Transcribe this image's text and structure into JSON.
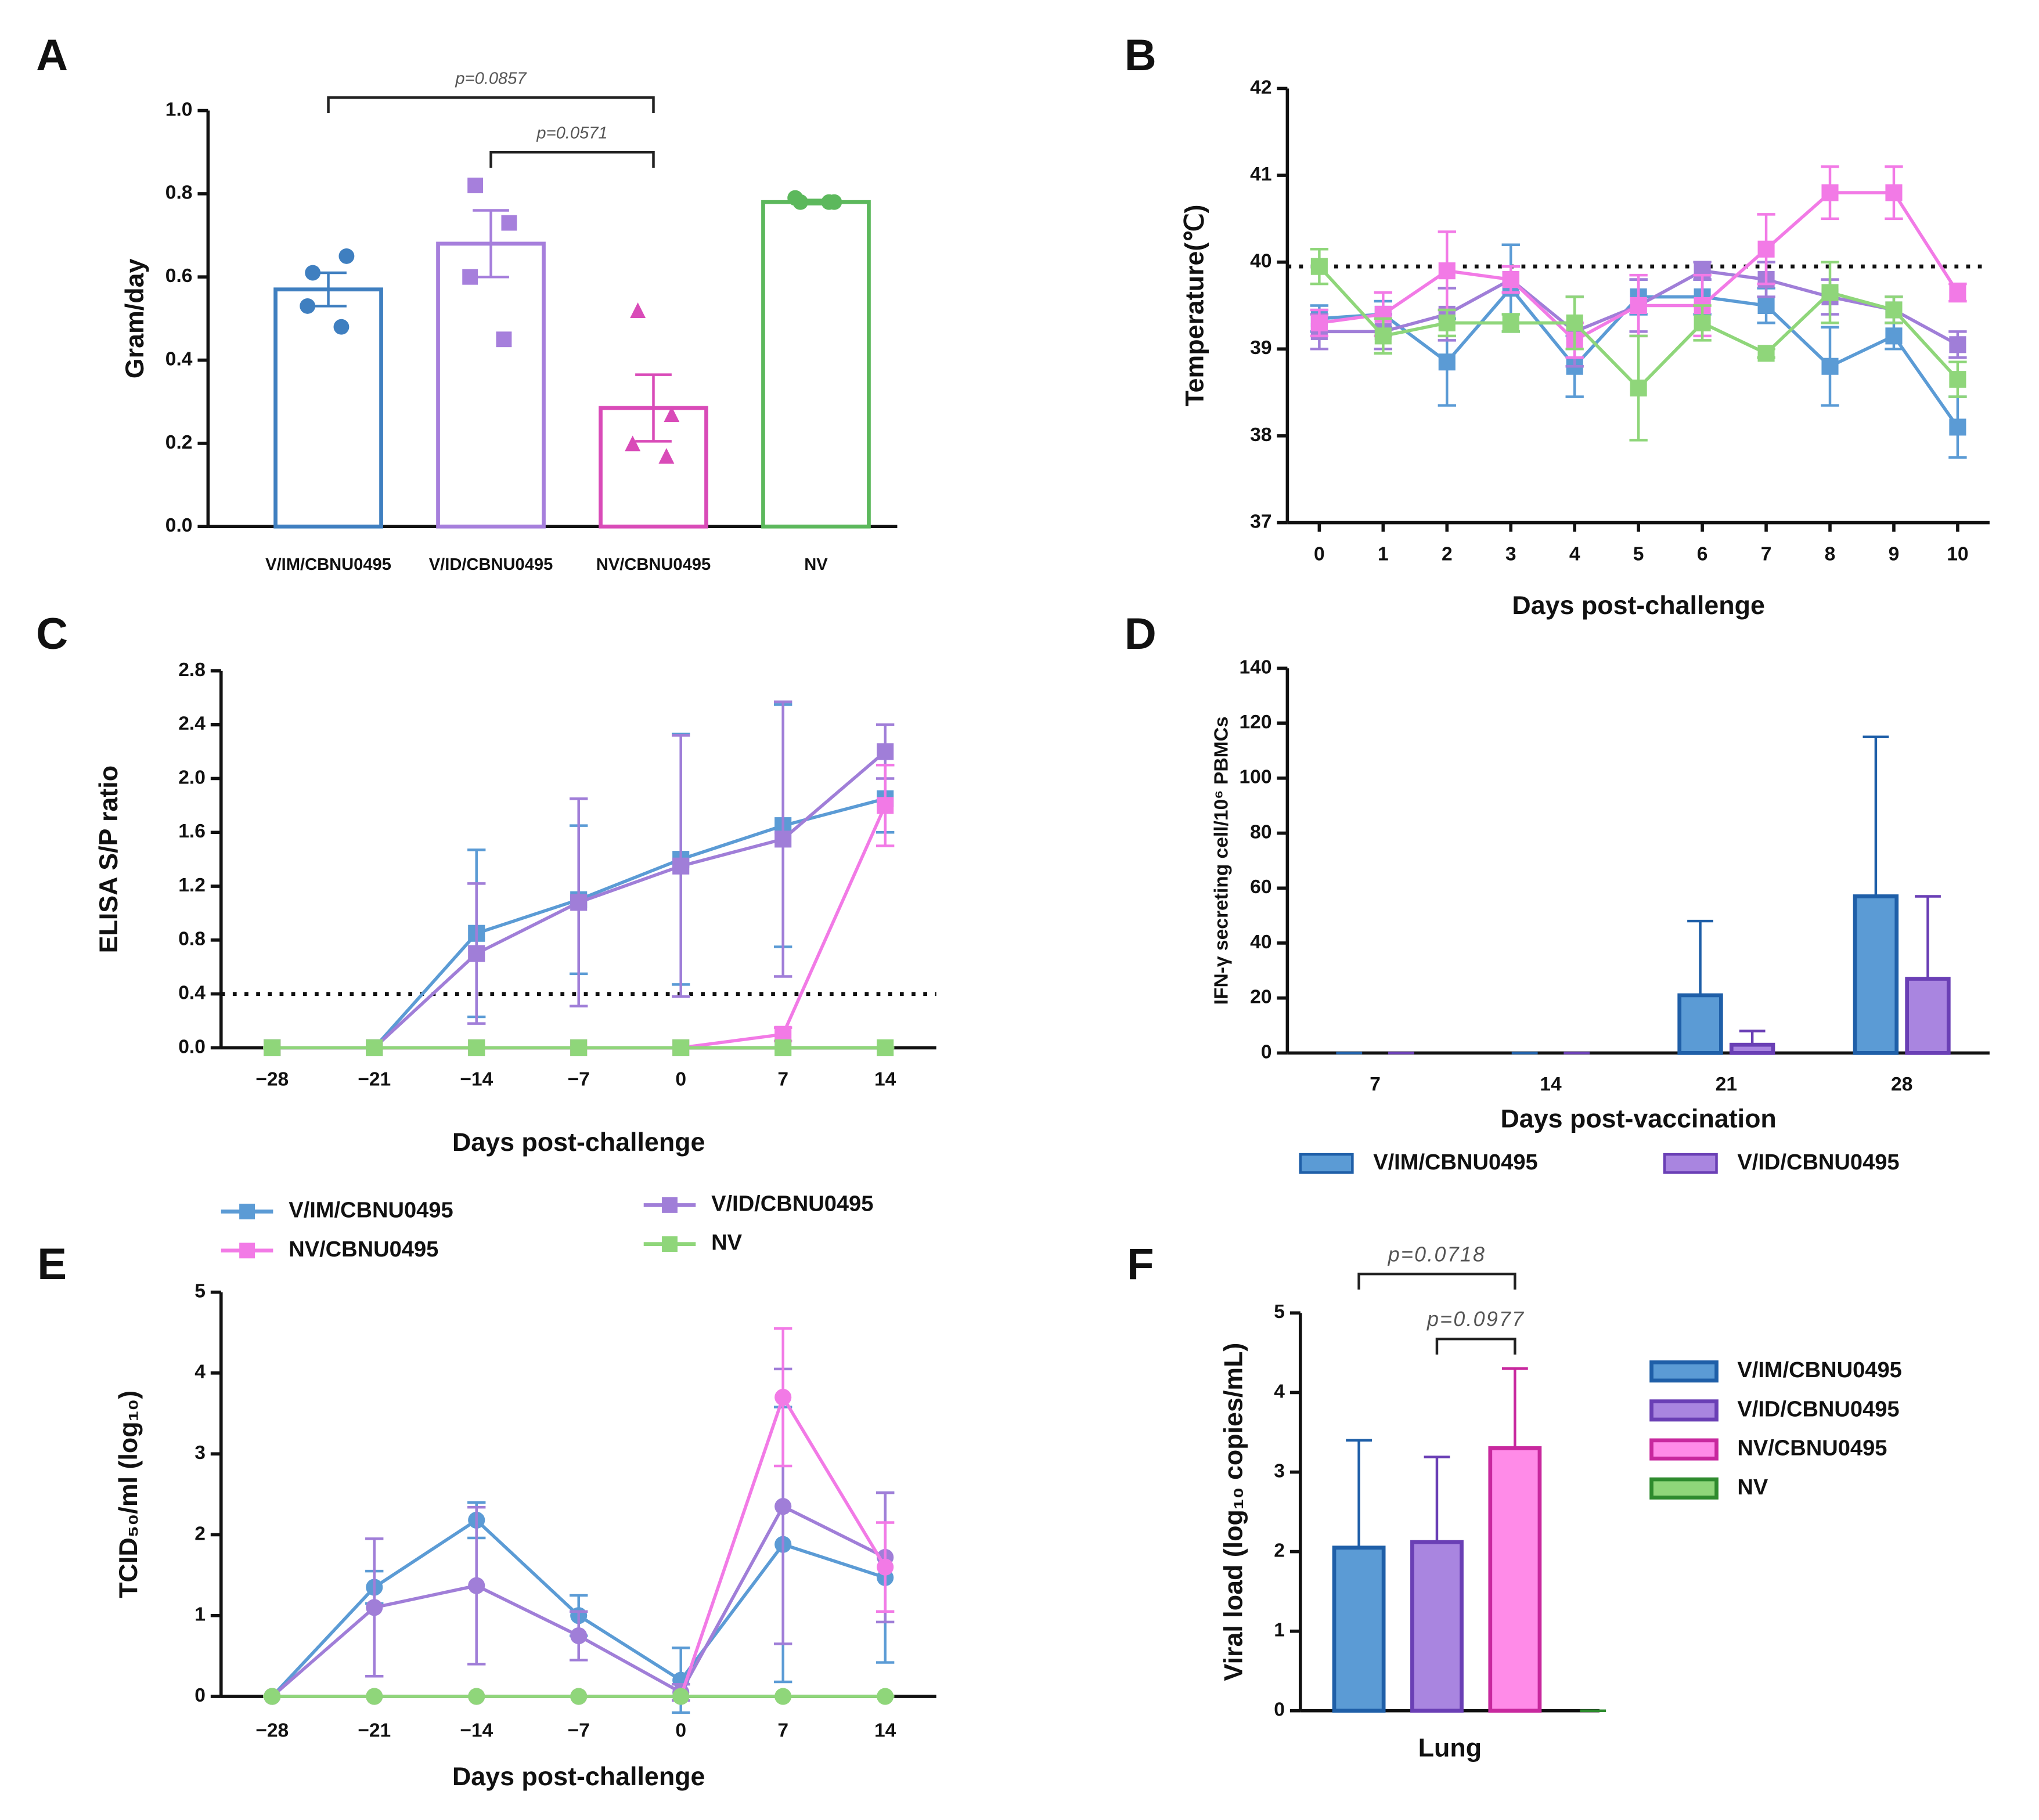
{
  "legend": {
    "entries": [
      {
        "name": "V/IM/CBNU0495",
        "color": "#5b9bd5"
      },
      {
        "name": "V/ID/CBNU0495",
        "color": "#a07ed8"
      },
      {
        "name": "NV/CBNU0495",
        "color": "#f27ae6"
      },
      {
        "name": "NV",
        "color": "#8fd67a"
      }
    ]
  },
  "chart_data": [
    {
      "type": "bar",
      "panel_label": "A",
      "ylabel": "Gram/day",
      "categories": [
        "V/IM/CBNU0495",
        "V/ID/CBNU0495",
        "NV/CBNU0495",
        "NV"
      ],
      "values": [
        0.57,
        0.68,
        0.285,
        0.78
      ],
      "errors": [
        0.04,
        0.08,
        0.08,
        0.005
      ],
      "colors": [
        "#3f7fc0",
        "#a67fdc",
        "#d94bb8",
        "#5cb85c"
      ],
      "points": [
        [
          0.61,
          0.65,
          0.53,
          0.48
        ],
        [
          0.82,
          0.73,
          0.6,
          0.45
        ],
        [
          0.52,
          0.27,
          0.2,
          0.17
        ],
        [
          0.78,
          0.78,
          0.79,
          0.78
        ]
      ],
      "point_markers": [
        "circle",
        "square",
        "triangle",
        "circle"
      ],
      "annotations": [
        "p=0.0857",
        "p=0.0571"
      ],
      "ylim": [
        0,
        1
      ],
      "yticks": [
        {
          "value": 0,
          "label": "0.0"
        },
        0.2,
        0.4,
        0.6,
        0.8,
        {
          "value": 1,
          "label": "1.0"
        }
      ]
    },
    {
      "type": "line",
      "panel_label": "B",
      "ylabel": "Temperature(℃)",
      "xlabel": "Days post-challenge",
      "marker": "square",
      "x": [
        0,
        1,
        2,
        3,
        4,
        5,
        6,
        7,
        8,
        9,
        10
      ],
      "xlim": [
        -0.5,
        10.5
      ],
      "xticks": [
        0,
        1,
        2,
        3,
        4,
        5,
        6,
        7,
        8,
        9,
        10
      ],
      "ylim": [
        37,
        42
      ],
      "yticks": [
        37,
        38,
        39,
        40,
        41,
        42
      ],
      "ref_line": 39.95,
      "series": [
        {
          "color": "#5b9bd5",
          "values": [
            39.35,
            39.4,
            38.85,
            39.7,
            38.8,
            39.6,
            39.6,
            39.5,
            38.8,
            39.15,
            38.1
          ],
          "errors": [
            0.15,
            0.15,
            0.5,
            0.5,
            0.35,
            0.2,
            0.2,
            0.2,
            0.45,
            0.15,
            0.35
          ]
        },
        {
          "color": "#a07ed8",
          "values": [
            39.2,
            39.2,
            39.4,
            39.8,
            39.2,
            39.5,
            39.9,
            39.8,
            39.6,
            39.45,
            39.05
          ],
          "errors": [
            0.2,
            0.2,
            0.3,
            0.15,
            0.4,
            0.3,
            0.1,
            0.2,
            0.2,
            0.15,
            0.15
          ]
        },
        {
          "color": "#f27ae6",
          "values": [
            39.3,
            39.4,
            39.9,
            39.8,
            39.1,
            39.5,
            39.5,
            40.15,
            40.8,
            40.8,
            39.65
          ],
          "errors": [
            0.15,
            0.25,
            0.45,
            0.15,
            0.2,
            0.35,
            0.35,
            0.4,
            0.3,
            0.3,
            0.1
          ]
        },
        {
          "color": "#8fd67a",
          "values": [
            39.95,
            39.15,
            39.3,
            39.3,
            39.3,
            38.55,
            39.3,
            38.95,
            39.65,
            39.45,
            38.65
          ],
          "errors": [
            0.2,
            0.2,
            0.15,
            0.1,
            0.3,
            0.6,
            0.2,
            0.05,
            0.35,
            0.15,
            0.2
          ]
        }
      ]
    },
    {
      "type": "line",
      "panel_label": "C",
      "ylabel": "ELISA S/P ratio",
      "xlabel": "Days post-challenge",
      "marker": "square",
      "categories": [
        "−28",
        "−21",
        "−14",
        "−7",
        "0",
        "7",
        "14"
      ],
      "ylim": [
        0,
        2.8
      ],
      "yticks": [
        {
          "value": 0,
          "label": "0.0"
        },
        0.4,
        0.8,
        1.2,
        1.6,
        {
          "value": 2,
          "label": "2.0"
        },
        2.4,
        2.8
      ],
      "ref_line": 0.4,
      "series": [
        {
          "color": "#5b9bd5",
          "values": [
            0,
            0,
            0.85,
            1.1,
            1.4,
            1.65,
            1.85
          ],
          "errors": [
            0,
            0,
            0.62,
            0.55,
            0.93,
            0.9,
            0.25
          ]
        },
        {
          "color": "#a07ed8",
          "values": [
            0,
            0,
            0.7,
            1.08,
            1.35,
            1.55,
            2.2
          ],
          "errors": [
            0,
            0,
            0.52,
            0.77,
            0.97,
            1.02,
            0.2
          ]
        },
        {
          "color": "#f27ae6",
          "values": [
            0,
            0,
            0,
            0,
            0,
            0.1,
            1.8
          ],
          "errors": [
            0,
            0,
            0,
            0,
            0,
            0.05,
            0.3
          ]
        },
        {
          "color": "#8fd67a",
          "values": [
            0,
            0,
            0,
            0,
            0,
            0,
            0
          ],
          "errors": [
            0,
            0,
            0,
            0,
            0,
            0,
            0
          ]
        }
      ]
    },
    {
      "type": "bar",
      "panel_label": "D",
      "ylabel": "IFN-γ secreting cell/10⁶ PBMCs",
      "xlabel": "Days post-vaccination",
      "legend": "below",
      "categories": [
        "7",
        "14",
        "21",
        "28"
      ],
      "ylim": [
        0,
        140
      ],
      "yticks": [
        0,
        20,
        40,
        60,
        80,
        100,
        120,
        140
      ],
      "series": [
        {
          "name": "V/IM/CBNU0495",
          "color": "#5b9bd5",
          "edge": "#1f5fa8",
          "values": [
            0,
            0,
            21,
            57
          ],
          "errors": [
            0,
            0,
            27,
            58
          ]
        },
        {
          "name": "V/ID/CBNU0495",
          "color": "#a985e0",
          "edge": "#6a3fb5",
          "values": [
            0,
            0,
            3,
            27
          ],
          "errors": [
            0,
            0,
            5,
            30
          ]
        }
      ]
    },
    {
      "type": "line",
      "panel_label": "E",
      "ylabel": "TCID₅₀/ml (log₁₀)",
      "xlabel": "Days post-challenge",
      "marker": "circle",
      "categories": [
        "−28",
        "−21",
        "−14",
        "−7",
        "0",
        "7",
        "14"
      ],
      "ylim": [
        0,
        5
      ],
      "yticks": [
        0,
        1,
        2,
        3,
        4,
        5
      ],
      "series": [
        {
          "color": "#5b9bd5",
          "values": [
            0,
            1.35,
            2.18,
            1.0,
            0.2,
            1.88,
            1.47
          ],
          "errors": [
            0,
            0.2,
            0.22,
            0.25,
            0.4,
            1.7,
            1.05
          ]
        },
        {
          "color": "#a07ed8",
          "values": [
            0,
            1.1,
            1.37,
            0.75,
            0.05,
            2.35,
            1.72
          ],
          "errors": [
            0,
            0.85,
            0.97,
            0.3,
            0.1,
            1.7,
            0.8
          ]
        },
        {
          "color": "#f27ae6",
          "values": [
            0,
            0,
            0,
            0,
            0,
            3.7,
            1.6
          ],
          "errors": [
            0,
            0,
            0,
            0,
            0,
            0.85,
            0.55
          ]
        },
        {
          "color": "#8fd67a",
          "values": [
            0,
            0,
            0,
            0,
            0,
            0,
            0
          ],
          "errors": [
            0,
            0,
            0,
            0,
            0,
            0,
            0
          ]
        }
      ]
    },
    {
      "type": "bar",
      "panel_label": "F",
      "ylabel": "Viral load (log₁₀ copies/mL)",
      "legend": "right",
      "categories": [
        "Lung"
      ],
      "annotations": [
        "p=0.0718",
        "p=0.0977"
      ],
      "ylim": [
        0,
        5
      ],
      "yticks": [
        0,
        1,
        2,
        3,
        4,
        5
      ],
      "series": [
        {
          "name": "V/IM/CBNU0495",
          "color": "#5b9bd5",
          "edge": "#1f5fa8",
          "values": [
            2.05
          ],
          "errors": [
            1.35
          ]
        },
        {
          "name": "V/ID/CBNU0495",
          "color": "#a985e0",
          "edge": "#6a3fb5",
          "values": [
            2.12
          ],
          "errors": [
            1.07
          ]
        },
        {
          "name": "NV/CBNU0495",
          "color": "#ff8be8",
          "edge": "#c8289e",
          "values": [
            3.3
          ],
          "errors": [
            1.0
          ]
        },
        {
          "name": "NV",
          "color": "#8fd67a",
          "edge": "#2e8b2e",
          "values": [
            0
          ],
          "errors": [
            0
          ]
        }
      ]
    }
  ]
}
